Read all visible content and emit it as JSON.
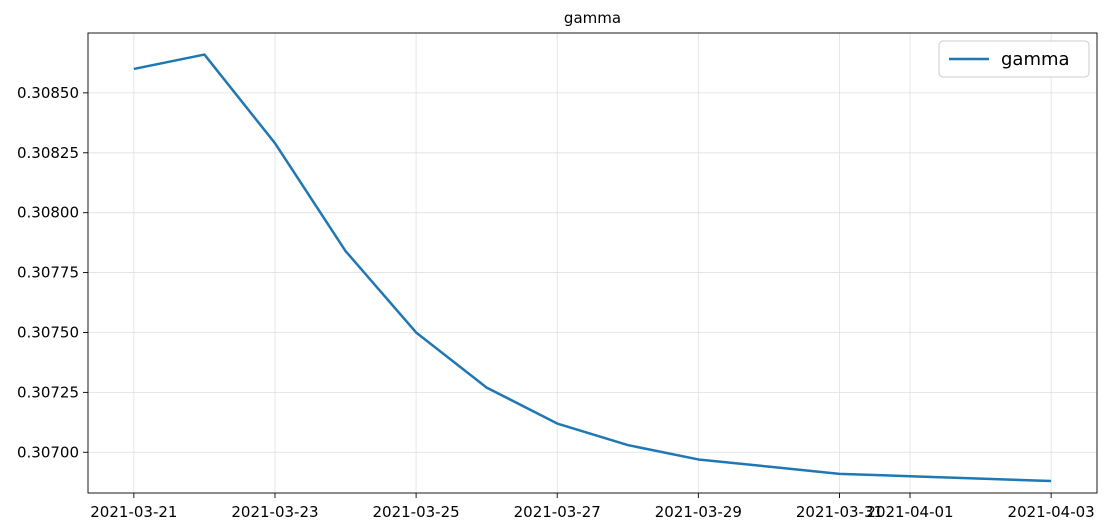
{
  "chart_data": {
    "type": "line",
    "title": "gamma",
    "xlabel": "",
    "ylabel": "",
    "x": [
      "2021-03-21",
      "2021-03-22",
      "2021-03-23",
      "2021-03-24",
      "2021-03-25",
      "2021-03-26",
      "2021-03-27",
      "2021-03-28",
      "2021-03-29",
      "2021-03-30",
      "2021-03-31",
      "2021-04-01",
      "2021-04-02",
      "2021-04-03"
    ],
    "series": [
      {
        "name": "gamma",
        "color": "#1f77b4",
        "values": [
          0.3086,
          0.30866,
          0.30829,
          0.30784,
          0.3075,
          0.30727,
          0.30712,
          0.30703,
          0.30697,
          0.30694,
          0.30691,
          0.3069,
          0.30689,
          0.30688
        ]
      }
    ],
    "x_ticks": [
      "2021-03-21",
      "2021-03-23",
      "2021-03-25",
      "2021-03-27",
      "2021-03-29",
      "2021-03-31",
      "2021-04-01",
      "2021-04-03"
    ],
    "y_ticks": [
      "0.30700",
      "0.30725",
      "0.30750",
      "0.30775",
      "0.30800",
      "0.30825",
      "0.30850"
    ],
    "ylim": [
      0.30683,
      0.30875
    ],
    "grid": true,
    "legend_position": "top-right"
  }
}
